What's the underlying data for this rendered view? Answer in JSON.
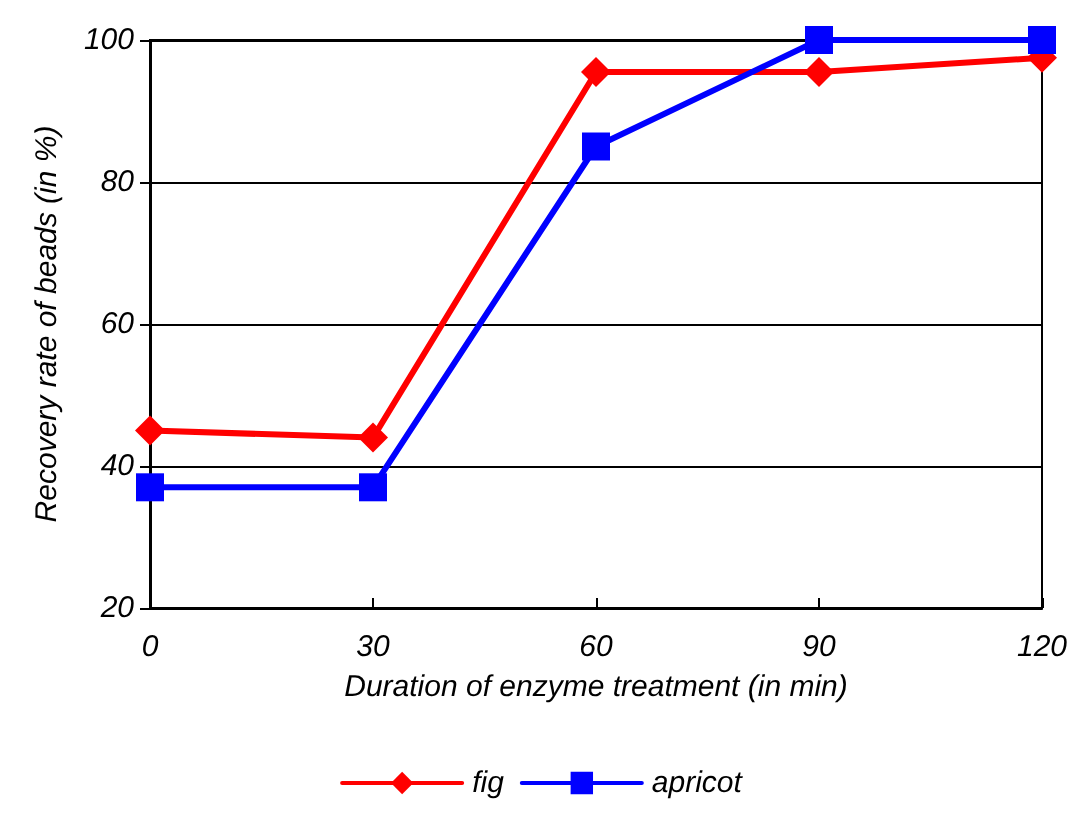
{
  "chart_data": {
    "type": "line",
    "xlabel": "Duration of enzyme treatment (in min)",
    "ylabel": "Recovery rate of beads (in %)",
    "x": [
      0,
      30,
      60,
      90,
      120
    ],
    "series": [
      {
        "name": "fig",
        "color": "#ff0000",
        "marker": "diamond",
        "values": [
          45,
          44,
          95.5,
          95.5,
          97.5
        ]
      },
      {
        "name": "apricot",
        "color": "#0000ff",
        "marker": "square",
        "values": [
          37,
          37,
          85,
          100,
          100
        ]
      }
    ],
    "xlim": [
      0,
      120
    ],
    "xticks": [
      0,
      30,
      60,
      90,
      120
    ],
    "ylim": [
      20,
      100
    ],
    "yticks": [
      20,
      40,
      60,
      80,
      100
    ],
    "grid": "y",
    "legend": "bottom",
    "line_style": "solid"
  }
}
